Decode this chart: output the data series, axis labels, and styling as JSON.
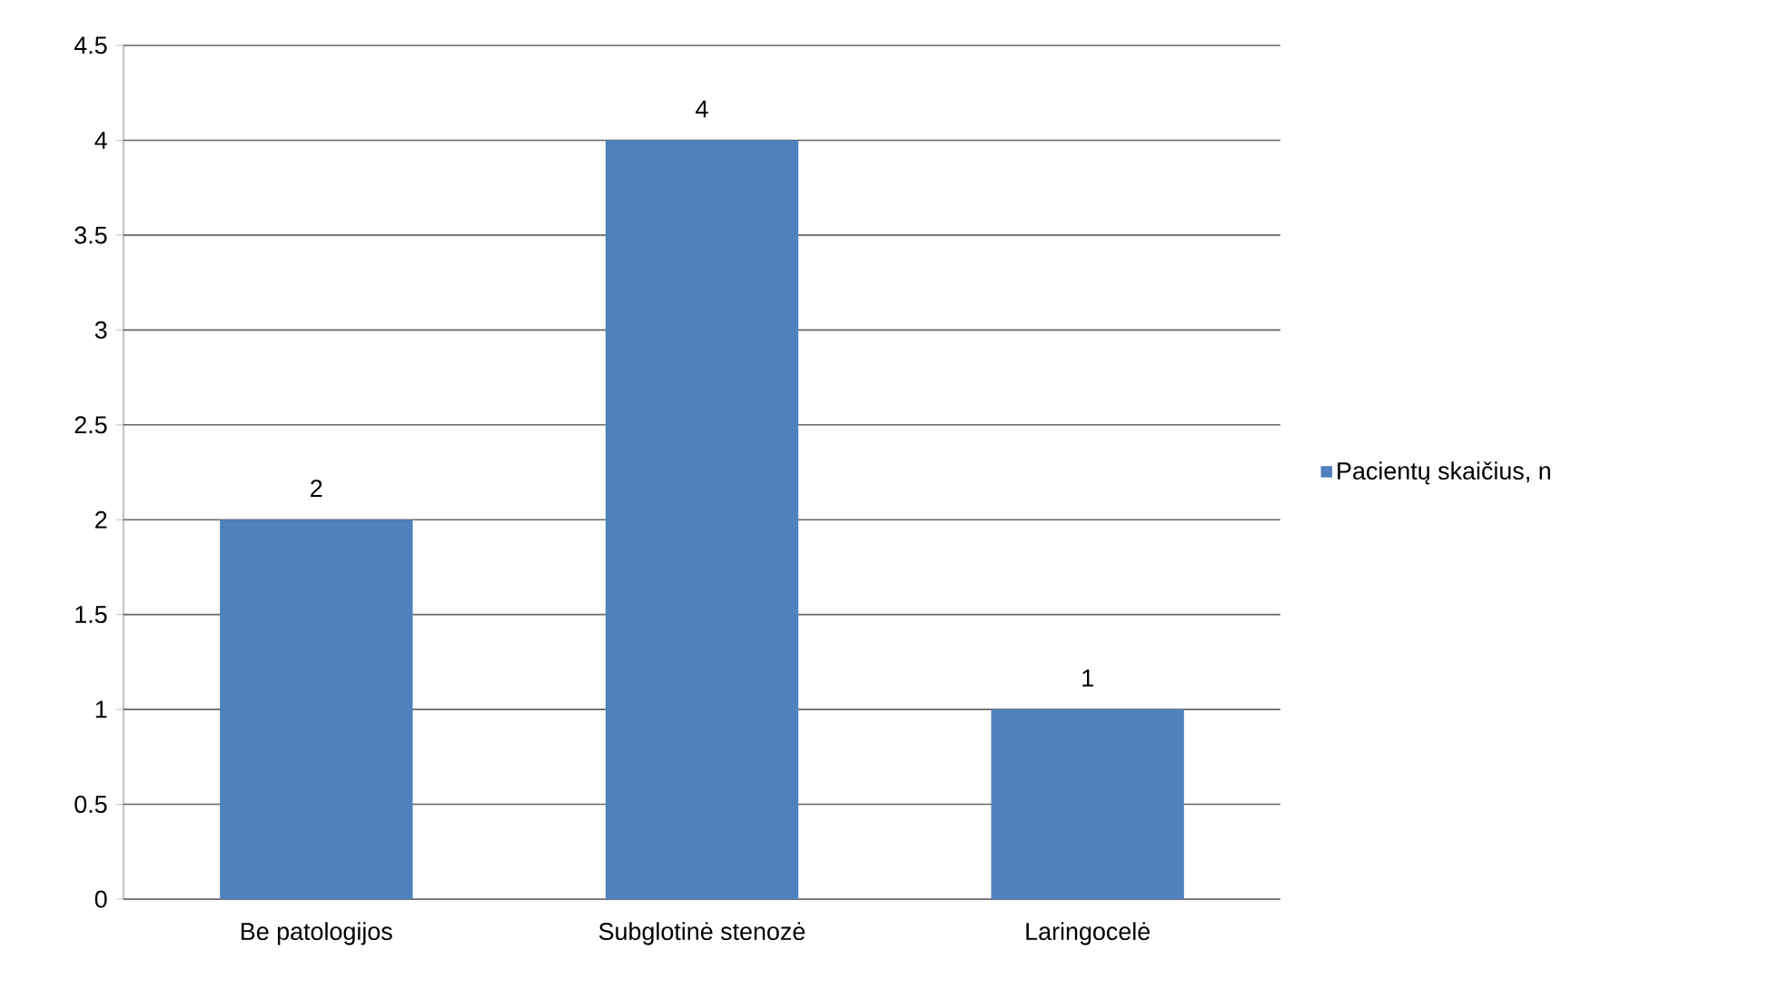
{
  "chart_data": {
    "type": "bar",
    "categories": [
      "Be patologijos",
      "Subglotinė stenozė",
      "Laringocelė"
    ],
    "series": [
      {
        "name": "Pacientų skaičius, n",
        "color": "#4f81bd",
        "values": [
          2,
          4,
          1
        ]
      }
    ],
    "ylim": [
      0,
      4.5
    ],
    "yticks": [
      0,
      0.5,
      1,
      1.5,
      2,
      2.5,
      3,
      3.5,
      4,
      4.5
    ],
    "grid": "y",
    "legend": "right",
    "data_labels": true
  }
}
